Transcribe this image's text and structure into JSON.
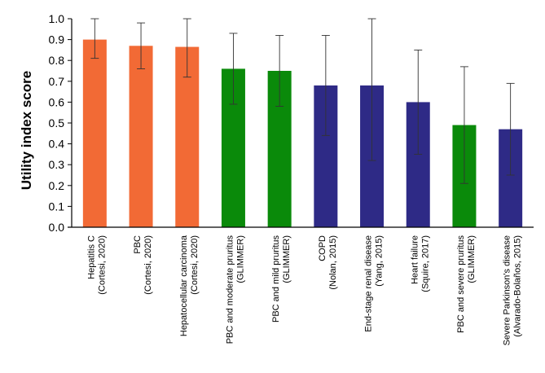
{
  "chart_data": {
    "type": "bar",
    "title": "",
    "xlabel": "",
    "ylabel": "Utility index score",
    "ylim": [
      0,
      1
    ],
    "yticks": [
      "0.0",
      "0.1",
      "0.2",
      "0.3",
      "0.4",
      "0.5",
      "0.6",
      "0.7",
      "0.8",
      "0.9",
      "1.0"
    ],
    "grid": false,
    "legend": "none",
    "colors": {
      "orange": "#F26A35",
      "green": "#0A8A0A",
      "navy": "#2E2A86",
      "axis": "#000000"
    },
    "categories": [
      {
        "lines": [
          "Hepatitis C",
          "(Cortesi, 2020)"
        ],
        "value": 0.9,
        "err_low": 0.81,
        "err_high": 1.0,
        "color": "orange"
      },
      {
        "lines": [
          "PBC",
          "(Cortesi, 2020)"
        ],
        "value": 0.87,
        "err_low": 0.76,
        "err_high": 0.98,
        "color": "orange"
      },
      {
        "lines": [
          "Hepatocellular carcinoma",
          "(Cortesi, 2020)"
        ],
        "value": 0.865,
        "err_low": 0.72,
        "err_high": 1.0,
        "color": "orange"
      },
      {
        "lines": [
          "PBC and moderate pruritus",
          "(GLIMMER)"
        ],
        "value": 0.76,
        "err_low": 0.59,
        "err_high": 0.93,
        "color": "green"
      },
      {
        "lines": [
          "PBC and mild pruritus",
          "(GLIMMER)"
        ],
        "value": 0.75,
        "err_low": 0.58,
        "err_high": 0.92,
        "color": "green"
      },
      {
        "lines": [
          "COPD",
          "(Nolan, 2015)"
        ],
        "value": 0.68,
        "err_low": 0.44,
        "err_high": 0.92,
        "color": "navy"
      },
      {
        "lines": [
          "End-stage renal disease",
          "(Yang, 2015)"
        ],
        "value": 0.68,
        "err_low": 0.32,
        "err_high": 1.0,
        "color": "navy"
      },
      {
        "lines": [
          "Heart failure",
          "(Squire, 2017)"
        ],
        "value": 0.6,
        "err_low": 0.35,
        "err_high": 0.85,
        "color": "navy"
      },
      {
        "lines": [
          "PBC and severe pruritus",
          "(GLIMMER)"
        ],
        "value": 0.49,
        "err_low": 0.21,
        "err_high": 0.77,
        "color": "green"
      },
      {
        "lines": [
          "Severe Parkinson's disease",
          "(Alvarado-Bolaños, 2015)"
        ],
        "value": 0.47,
        "err_low": 0.25,
        "err_high": 0.69,
        "color": "navy"
      }
    ]
  }
}
